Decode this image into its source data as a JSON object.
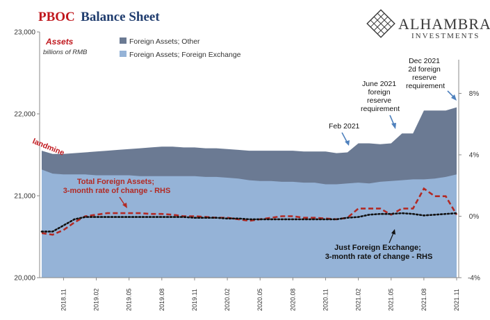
{
  "title_part1": "PBOC",
  "title_part2": "Balance Sheet",
  "logo": {
    "name": "ALHAMBRA",
    "sub": "INVESTMENTS"
  },
  "chart_data": {
    "type": "area",
    "title": "PBOC Balance Sheet",
    "series_group_label": "Assets",
    "units_label": "billions of RMB",
    "x_tick_labels": [
      "2018.11",
      "2019.02",
      "2019.05",
      "2019.08",
      "2019.11",
      "2020.02",
      "2020.05",
      "2020.08",
      "2020.11",
      "2021.02",
      "2021.05",
      "2021.08",
      "2021.11"
    ],
    "y_left": {
      "min": 20000,
      "max": 23000,
      "ticks": [
        "20,000",
        "21,000",
        "22,000",
        "23,000"
      ]
    },
    "y_right": {
      "min": -4,
      "max": 12,
      "ticks": [
        "-4%",
        "0%",
        "4%",
        "8%"
      ]
    },
    "x": [
      "2018.09",
      "2018.10",
      "2018.11",
      "2018.12",
      "2019.01",
      "2019.02",
      "2019.03",
      "2019.04",
      "2019.05",
      "2019.06",
      "2019.07",
      "2019.08",
      "2019.09",
      "2019.10",
      "2019.11",
      "2019.12",
      "2020.01",
      "2020.02",
      "2020.03",
      "2020.04",
      "2020.05",
      "2020.06",
      "2020.07",
      "2020.08",
      "2020.09",
      "2020.10",
      "2020.11",
      "2020.12",
      "2021.01",
      "2021.02",
      "2021.03",
      "2021.04",
      "2021.05",
      "2021.06",
      "2021.07",
      "2021.08",
      "2021.09",
      "2021.10",
      "2021.11"
    ],
    "series": [
      {
        "name": "Foreign Assets; Other",
        "color": "#6b7a93",
        "values": [
          21550,
          21510,
          21510,
          21520,
          21530,
          21540,
          21550,
          21560,
          21570,
          21580,
          21590,
          21600,
          21600,
          21590,
          21590,
          21580,
          21580,
          21570,
          21560,
          21550,
          21550,
          21550,
          21550,
          21550,
          21540,
          21540,
          21540,
          21520,
          21530,
          21640,
          21640,
          21630,
          21640,
          21760,
          21760,
          22040,
          22040,
          22040,
          22080
        ]
      },
      {
        "name": "Foreign Assets; Foreign Exchange",
        "color": "#95b3d7",
        "values": [
          21320,
          21270,
          21260,
          21260,
          21260,
          21250,
          21250,
          21250,
          21250,
          21240,
          21240,
          21240,
          21240,
          21240,
          21240,
          21230,
          21230,
          21220,
          21210,
          21190,
          21180,
          21180,
          21170,
          21170,
          21160,
          21160,
          21140,
          21140,
          21150,
          21160,
          21150,
          21170,
          21180,
          21190,
          21200,
          21200,
          21210,
          21230,
          21260
        ]
      },
      {
        "name": "Total Foreign Assets; 3-month rate of change - RHS",
        "axis": "right",
        "color": "#b22a24",
        "values": [
          -1.1,
          -1.2,
          -0.9,
          -0.4,
          0.0,
          0.1,
          0.2,
          0.2,
          0.2,
          0.2,
          0.15,
          0.15,
          0.1,
          0.0,
          0.0,
          -0.05,
          -0.1,
          -0.1,
          -0.2,
          -0.3,
          -0.2,
          -0.1,
          0.0,
          0.0,
          -0.1,
          -0.1,
          -0.15,
          -0.2,
          -0.1,
          0.5,
          0.5,
          0.5,
          0.1,
          0.5,
          0.5,
          1.8,
          1.3,
          1.3,
          0.1
        ]
      },
      {
        "name": "Just Foreign Exchange; 3-month rate of change - RHS",
        "axis": "right",
        "color": "#111111",
        "values": [
          -1.0,
          -1.0,
          -0.6,
          -0.2,
          -0.05,
          -0.05,
          -0.05,
          -0.05,
          -0.05,
          -0.05,
          -0.05,
          -0.05,
          -0.05,
          -0.05,
          -0.1,
          -0.1,
          -0.1,
          -0.15,
          -0.15,
          -0.2,
          -0.2,
          -0.2,
          -0.2,
          -0.2,
          -0.2,
          -0.2,
          -0.2,
          -0.2,
          -0.1,
          -0.05,
          0.1,
          0.15,
          0.15,
          0.2,
          0.15,
          0.05,
          0.1,
          0.15,
          0.2
        ]
      }
    ],
    "legend": [
      {
        "label": "Foreign Assets; Other",
        "color": "#6b7a93"
      },
      {
        "label": "Foreign Assets; Foreign Exchange",
        "color": "#95b3d7"
      }
    ],
    "annotations": {
      "landmine": "landmine",
      "feb2021": "Feb 2021",
      "june2021": [
        "June 2021",
        "foreign",
        "reserve",
        "requirement"
      ],
      "dec2021": [
        "Dec 2021",
        "2d foreign",
        "reserve",
        "requirement"
      ],
      "total_label": [
        "Total Foreign Assets;",
        "3-month rate of change - RHS"
      ],
      "fx_label": [
        "Just Foreign Exchange;",
        "3-month rate of change - RHS"
      ]
    }
  }
}
